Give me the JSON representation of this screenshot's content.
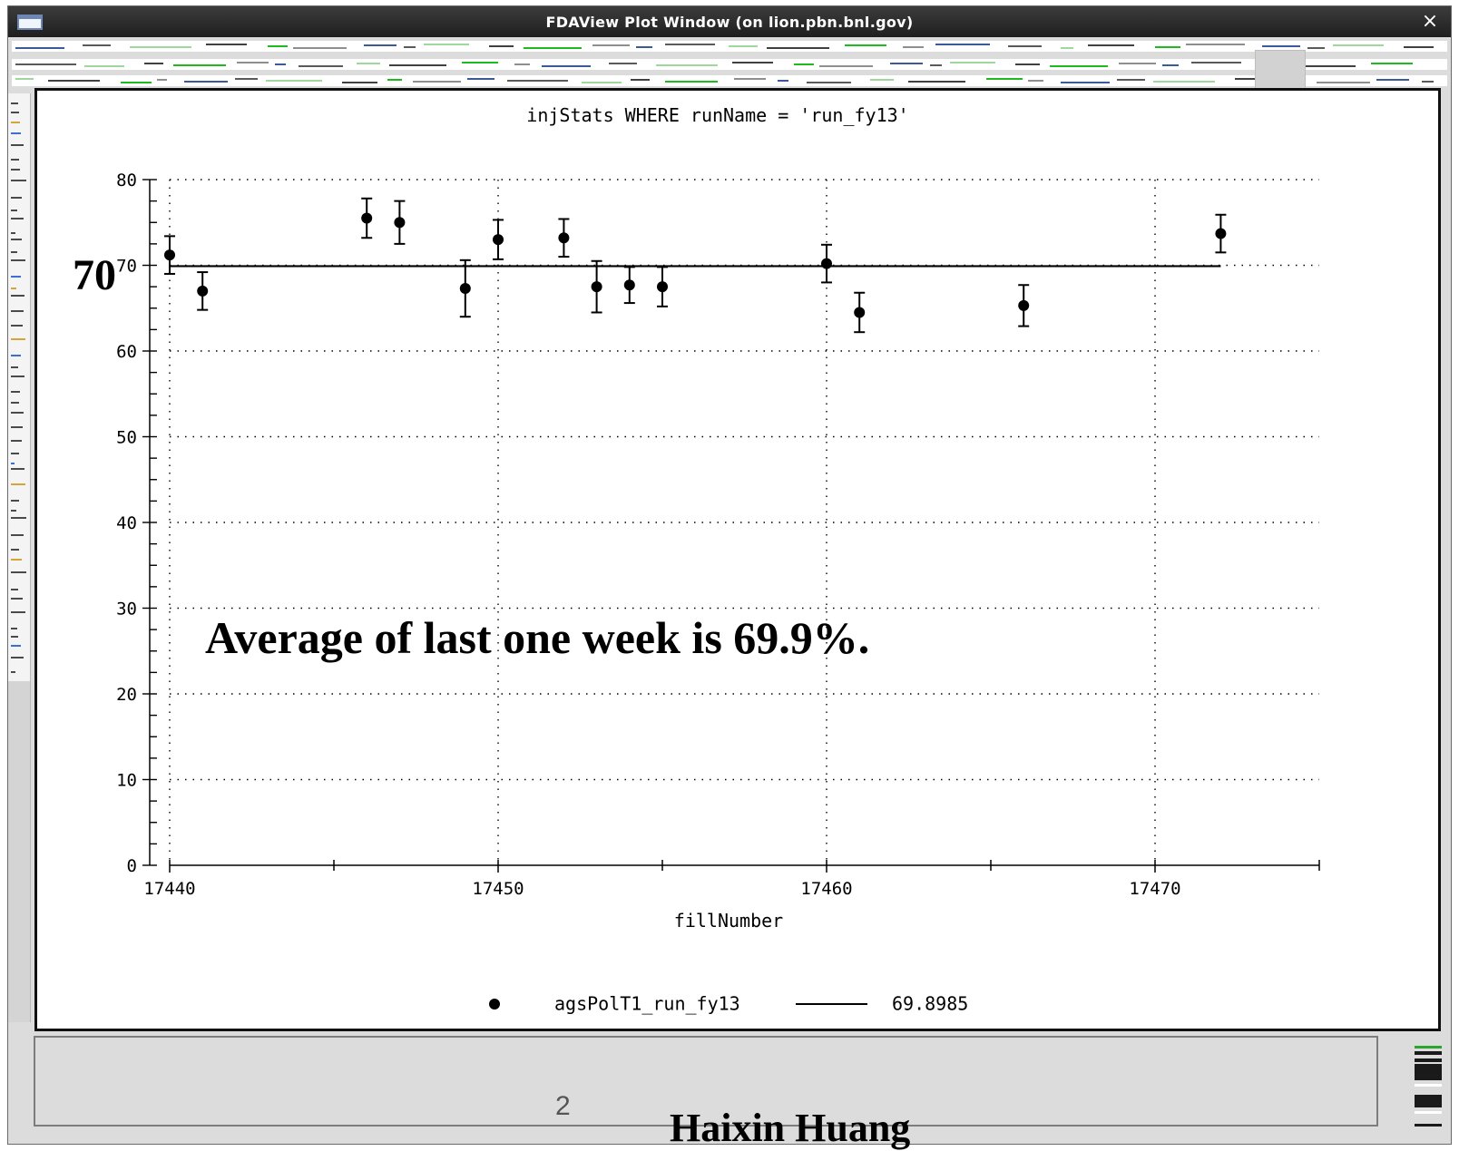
{
  "window": {
    "title": "FDAView Plot Window (on lion.pbn.bnl.gov)",
    "close_glyph": "×",
    "icons": {
      "window": "window-icon",
      "close": "close-icon"
    }
  },
  "chart_data": {
    "type": "scatter",
    "title": "injStats WHERE runName = 'run_fy13'",
    "xlabel": "fillNumber",
    "ylabel": "",
    "xlim": [
      17440,
      17475
    ],
    "ylim": [
      0,
      80
    ],
    "x_ticks": [
      17440,
      17450,
      17460,
      17470
    ],
    "y_ticks": [
      0,
      10,
      20,
      30,
      40,
      50,
      60,
      70,
      80
    ],
    "grid": true,
    "legend_position": "bottom",
    "series": [
      {
        "name": "agsPolT1_run_fy13",
        "kind": "points-with-error-bars",
        "x": [
          17440,
          17441,
          17446,
          17447,
          17449,
          17450,
          17452,
          17453,
          17454,
          17455,
          17460,
          17461,
          17466,
          17472
        ],
        "y": [
          71.2,
          67.0,
          75.5,
          75.0,
          67.3,
          73.0,
          73.2,
          67.5,
          67.7,
          67.5,
          70.2,
          64.5,
          65.3,
          73.7
        ],
        "yerr": [
          2.2,
          2.2,
          2.3,
          2.5,
          3.3,
          2.3,
          2.2,
          3.0,
          2.1,
          2.3,
          2.2,
          2.3,
          2.4,
          2.2
        ]
      },
      {
        "name": "69.8985",
        "kind": "line",
        "x": [
          17440,
          17472
        ],
        "y": [
          69.8985,
          69.8985
        ]
      }
    ]
  },
  "overlays": {
    "seventy_label": "70",
    "average_note": "Average of last one week is 69.9%."
  },
  "footer": {
    "page_number": "2",
    "author": "Haixin Huang"
  }
}
